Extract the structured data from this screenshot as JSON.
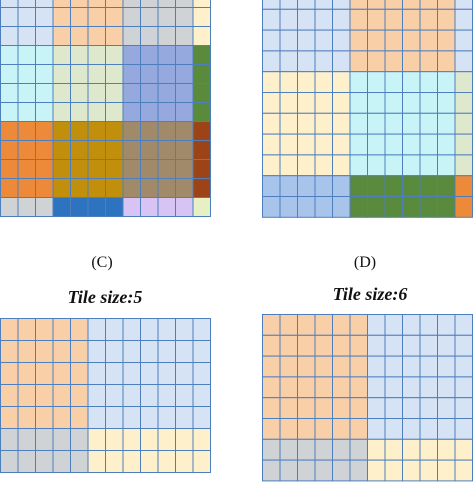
{
  "colors": {
    "A": "#f9cfa8",
    "B": "#d6e3f5",
    "C": "#d0d3d6",
    "D": "#fff0cc",
    "E": "#c8f4f8",
    "F": "#dde8cc",
    "G": "#95a9de",
    "H": "#5a8a3c",
    "I": "#ec8a3a",
    "J": "#c28f0c",
    "K": "#a08a6a",
    "L": "#9c4318",
    "M": "#b2b5b8",
    "N": "#2e73bf",
    "O": "#d8c4f4",
    "P": "#e6f0c4",
    "Q": "#a8c4ea",
    "grid": "#4e7fbd"
  },
  "panels": [
    {
      "id": "panel-c",
      "caption": "(C)",
      "grid": [
        "BBBAAAACCCCD",
        "BBBAAAACCCCD",
        "BBBAAAACCCCD",
        "EEEFFFFGGGGH",
        "EEEFFFFGGGGH",
        "EEEFFFFGGGGH",
        "EEEFFFFGGGGH",
        "IIIJJJJKKKKL",
        "IIIJJJJKKKKL",
        "IIIJJJJKKKKL",
        "IIIJJJJKKKKL",
        "CCCNNNNOOOOP"
      ]
    },
    {
      "id": "panel-d",
      "caption": "(D)",
      "grid": [
        "BBBBBAAAAAAB",
        "BBBBBAAAAAAB",
        "BBBBBAAAAAAB",
        "BBBBBAAAAAAB",
        "DDDDDEEEEEEF",
        "DDDDDEEEEEEF",
        "DDDDDEEEEEEF",
        "DDDDDEEEEEEF",
        "DDDDDEEEEEEF",
        "QQQQQHHHHHHI",
        "QQQQQHHHHHHI"
      ]
    },
    {
      "id": "panel-tile5",
      "title": "Tile size:5",
      "grid": [
        "AAAAABBBBBBB",
        "AAAAABBBBBBB",
        "AAAAABBBBBBB",
        "AAAAABBBBBBB",
        "AAAAABBBBBBB",
        "CCCCCDDDDDDD",
        "CCCCCDDDDDDD"
      ]
    },
    {
      "id": "panel-tile6",
      "title": "Tile size:6",
      "grid": [
        "AAAAAABBBBBB",
        "AAAAAABBBBBB",
        "AAAAAABBBBBB",
        "AAAAAABBBBBB",
        "AAAAAABBBBBB",
        "AAAAAABBBBBB",
        "CCCCCCDDDDDD",
        "CCCCCCDDDDDD"
      ]
    }
  ]
}
